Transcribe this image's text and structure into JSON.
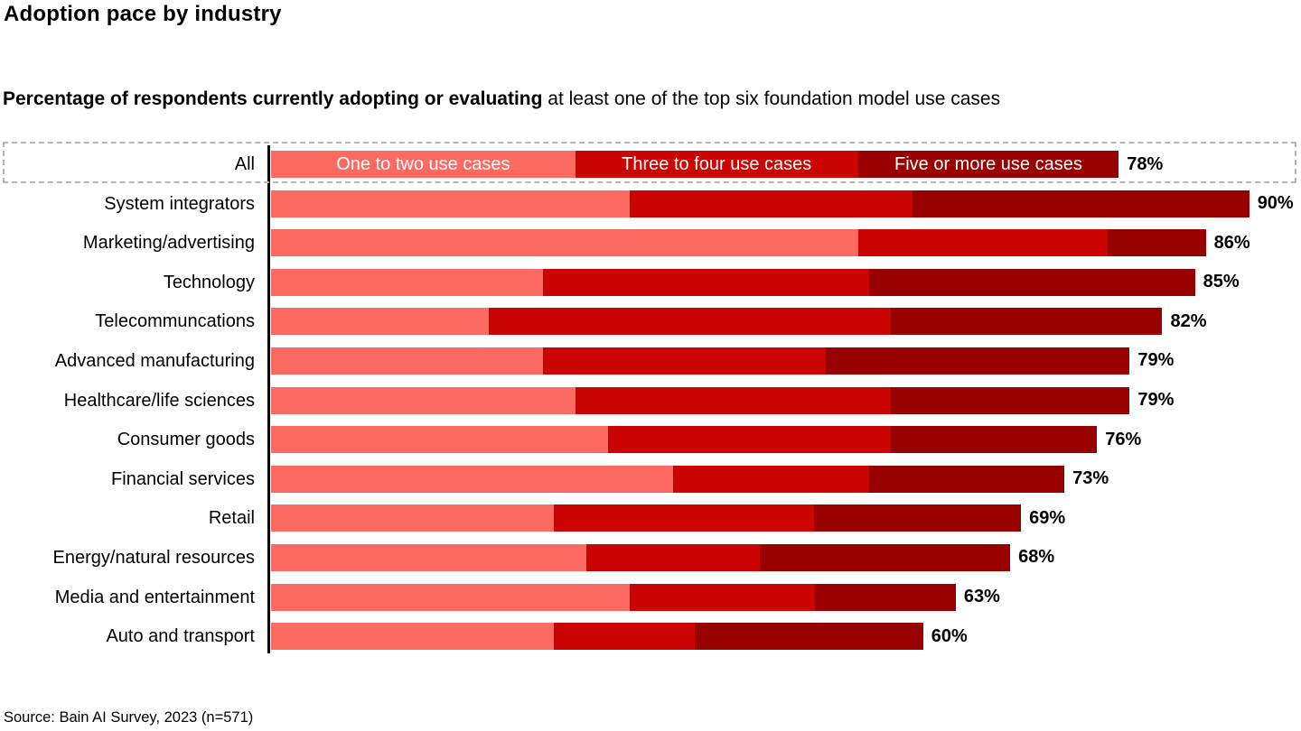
{
  "header": {
    "title": "Adoption pace by industry",
    "subtitle_bold": "Percentage of respondents currently adopting or evaluating",
    "subtitle_rest": " at least one of the top six foundation model use cases"
  },
  "colors": {
    "segment_one_to_two": "#fc6a62",
    "segment_three_to_four": "#cc0404",
    "segment_five_or_more": "#990000",
    "axis": "#000000",
    "highlight_box_dash": "#b5b5b5",
    "legend_text": "#ffffff",
    "value_label_text": "#000000"
  },
  "chart_data": {
    "type": "bar",
    "orientation": "horizontal",
    "stacked": true,
    "unit": "percent",
    "xlim": [
      0,
      95
    ],
    "grid": false,
    "legend_position": "inside-first-bar",
    "legend": [
      "One to two use cases",
      "Three to four use cases",
      "Five or more use cases"
    ],
    "categories": [
      "All",
      "System integrators",
      "Marketing/advertising",
      "Technology",
      "Telecommuncations",
      "Advanced manufacturing",
      "Healthcare/life sciences",
      "Consumer goods",
      "Financial services",
      "Retail",
      "Energy/natural resources",
      "Media and entertainment",
      "Auto and transport"
    ],
    "series": [
      {
        "name": "One to two use cases",
        "values": [
          28,
          33,
          54,
          25,
          20,
          25,
          28,
          31,
          37,
          26,
          29,
          33,
          26
        ]
      },
      {
        "name": "Three to four use cases",
        "values": [
          26,
          26,
          23,
          30,
          37,
          26,
          29,
          26,
          18,
          24,
          16,
          17,
          13
        ]
      },
      {
        "name": "Five or more use cases",
        "values": [
          24,
          31,
          9,
          30,
          25,
          28,
          22,
          19,
          18,
          19,
          23,
          13,
          21
        ]
      }
    ],
    "totals": [
      78,
      90,
      86,
      85,
      82,
      79,
      79,
      76,
      73,
      69,
      68,
      63,
      60
    ],
    "total_labels": [
      "78%",
      "90%",
      "86%",
      "85%",
      "82%",
      "79%",
      "79%",
      "76%",
      "73%",
      "69%",
      "68%",
      "63%",
      "60%"
    ],
    "highlighted_category": "All"
  },
  "footer": {
    "source": "Source: Bain AI Survey, 2023 (n=571)"
  }
}
